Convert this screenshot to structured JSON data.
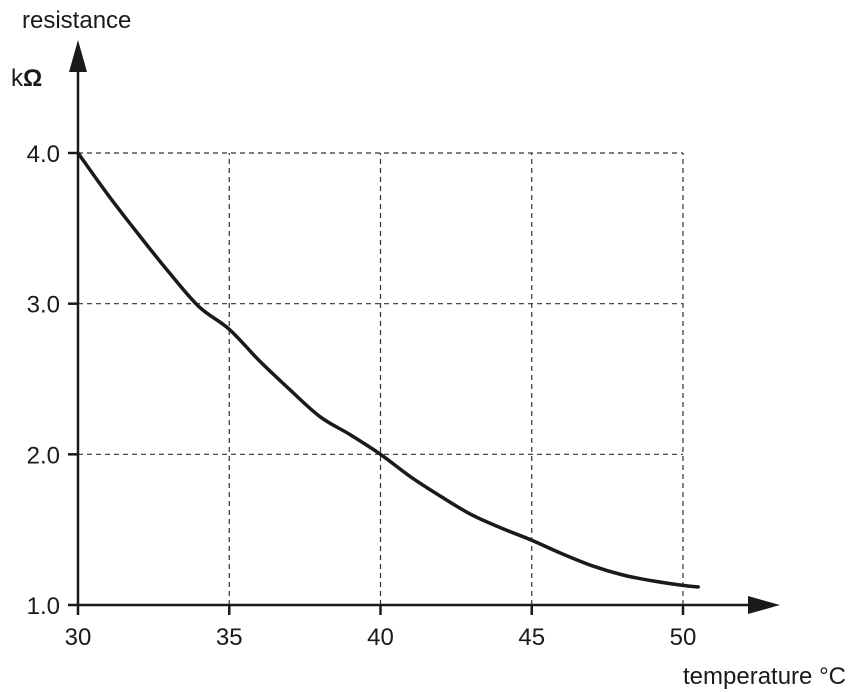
{
  "chart_data": {
    "type": "line",
    "ylabel": "resistance",
    "yunit_prefix": "k",
    "yunit_symbol": "Ω",
    "xlabel": "temperature °C",
    "xlim": [
      30,
      50
    ],
    "ylim": [
      1.0,
      4.0
    ],
    "xticks": [
      "30",
      "35",
      "40",
      "45",
      "50"
    ],
    "yticks": [
      "1.0",
      "2.0",
      "3.0",
      "4.0"
    ],
    "grid": true,
    "series": [
      {
        "x": [
          30,
          31,
          32,
          33,
          34,
          35,
          36,
          37,
          38,
          39,
          40,
          41,
          42,
          43,
          44,
          45,
          46,
          47,
          48,
          49,
          50,
          50.5
        ],
        "y": [
          4.0,
          3.72,
          3.46,
          3.21,
          2.98,
          2.83,
          2.62,
          2.43,
          2.25,
          2.13,
          2.0,
          1.85,
          1.72,
          1.6,
          1.51,
          1.43,
          1.34,
          1.26,
          1.2,
          1.16,
          1.13,
          1.12
        ]
      }
    ],
    "colors": {
      "line": "#1a1a1a",
      "grid": "#333333"
    }
  }
}
